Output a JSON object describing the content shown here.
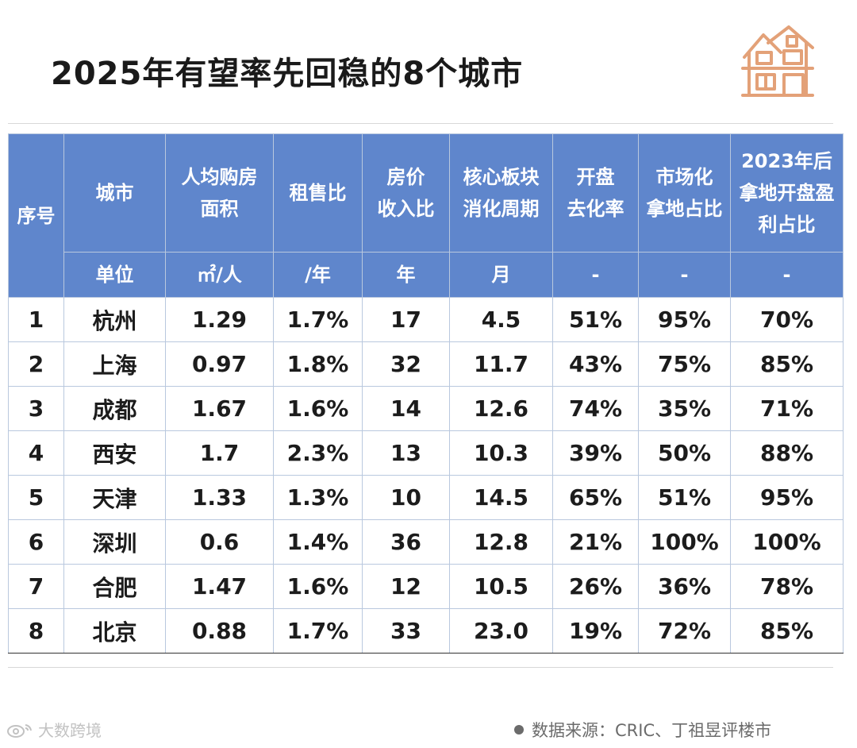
{
  "title": "2025年有望率先回稳的8个城市",
  "header": {
    "columns": [
      {
        "line1": "序号"
      },
      {
        "line1": "城市"
      },
      {
        "line1": "人均购房",
        "line2": "面积"
      },
      {
        "line1": "租售比"
      },
      {
        "line1": "房价",
        "line2": "收入比"
      },
      {
        "line1": "核心板块",
        "line2": "消化周期"
      },
      {
        "line1": "开盘",
        "line2": "去化率"
      },
      {
        "line1": "市场化",
        "line2": "拿地占比"
      },
      {
        "line1": "2023年后",
        "line2": "拿地开盘盈",
        "line3": "利占比"
      }
    ],
    "units": [
      "单位",
      "㎡/人",
      "/年",
      "年",
      "月",
      "-",
      "-",
      "-"
    ]
  },
  "rows": [
    [
      "1",
      "杭州",
      "1.29",
      "1.7%",
      "17",
      "4.5",
      "51%",
      "95%",
      "70%"
    ],
    [
      "2",
      "上海",
      "0.97",
      "1.8%",
      "32",
      "11.7",
      "43%",
      "75%",
      "85%"
    ],
    [
      "3",
      "成都",
      "1.67",
      "1.6%",
      "14",
      "12.6",
      "74%",
      "35%",
      "71%"
    ],
    [
      "4",
      "西安",
      "1.7",
      "2.3%",
      "13",
      "10.3",
      "39%",
      "50%",
      "88%"
    ],
    [
      "5",
      "天津",
      "1.33",
      "1.3%",
      "10",
      "14.5",
      "65%",
      "51%",
      "95%"
    ],
    [
      "6",
      "深圳",
      "0.6",
      "1.4%",
      "36",
      "12.8",
      "21%",
      "100%",
      "100%"
    ],
    [
      "7",
      "合肥",
      "1.47",
      "1.6%",
      "12",
      "10.5",
      "26%",
      "36%",
      "78%"
    ],
    [
      "8",
      "北京",
      "0.88",
      "1.7%",
      "33",
      "23.0",
      "19%",
      "72%",
      "85%"
    ]
  ],
  "footer": {
    "watermark": "大数跨境",
    "source": "数据来源：CRIC、丁祖昱评楼市"
  },
  "colors": {
    "header_bg": "#5f86cc",
    "icon": "#e3a178"
  }
}
